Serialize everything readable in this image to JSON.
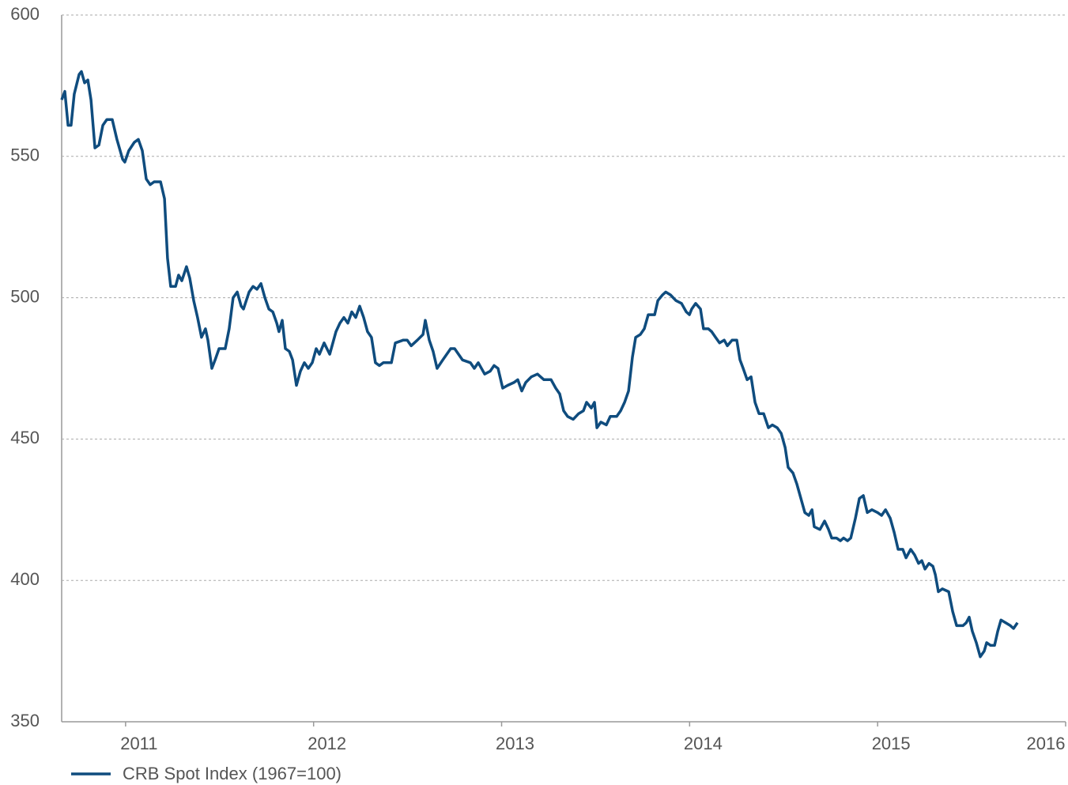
{
  "chart_data": {
    "type": "line",
    "xlim": [
      2010.66,
      2016
    ],
    "ylim": [
      350,
      600
    ],
    "xticks": [
      2011,
      2012,
      2013,
      2014,
      2015,
      2016
    ],
    "yticks": [
      350,
      400,
      450,
      500,
      550,
      600
    ],
    "grid": true,
    "legend": "bottom-left",
    "series": [
      {
        "name": "CRB Spot Index (1967=100)",
        "color": "#0f4c7e",
        "x": [
          2010.66,
          2010.677,
          2010.694,
          2010.71,
          2010.727,
          2010.753,
          2010.765,
          2010.782,
          2010.799,
          2010.816,
          2010.837,
          2010.858,
          2010.879,
          2010.9,
          2010.929,
          2010.954,
          2010.984,
          2010.996,
          2011.017,
          2011.047,
          2011.068,
          2011.089,
          2011.11,
          2011.131,
          2011.152,
          2011.186,
          2011.207,
          2011.223,
          2011.24,
          2011.266,
          2011.282,
          2011.299,
          2011.324,
          2011.341,
          2011.362,
          2011.383,
          2011.404,
          2011.425,
          2011.438,
          2011.459,
          2011.476,
          2011.497,
          2011.53,
          2011.551,
          2011.572,
          2011.594,
          2011.615,
          2011.627,
          2011.657,
          2011.678,
          2011.699,
          2011.72,
          2011.741,
          2011.762,
          2011.783,
          2011.804,
          2011.816,
          2011.833,
          2011.85,
          2011.871,
          2011.888,
          2011.909,
          2011.93,
          2011.951,
          2011.972,
          2011.993,
          2012.014,
          2012.031,
          2012.056,
          2012.086,
          2012.119,
          2012.14,
          2012.161,
          2012.182,
          2012.203,
          2012.224,
          2012.245,
          2012.266,
          2012.287,
          2012.308,
          2012.329,
          2012.35,
          2012.371,
          2012.414,
          2012.435,
          2012.477,
          2012.498,
          2012.519,
          2012.552,
          2012.582,
          2012.594,
          2012.615,
          2012.636,
          2012.657,
          2012.687,
          2012.729,
          2012.75,
          2012.792,
          2012.834,
          2012.855,
          2012.876,
          2012.91,
          2012.939,
          2012.96,
          2012.981,
          2013.006,
          2013.032,
          2013.065,
          2013.086,
          2013.107,
          2013.128,
          2013.158,
          2013.191,
          2013.225,
          2013.242,
          2013.263,
          2013.288,
          2013.309,
          2013.33,
          2013.351,
          2013.381,
          2013.41,
          2013.435,
          2013.452,
          2013.477,
          2013.494,
          2013.507,
          2013.528,
          2013.557,
          2013.578,
          2013.612,
          2013.633,
          2013.654,
          2013.675,
          2013.696,
          2013.713,
          2013.738,
          2013.759,
          2013.78,
          2013.814,
          2013.831,
          2013.856,
          2013.873,
          2013.898,
          2013.927,
          2013.957,
          2013.982,
          2013.999,
          2014.011,
          2014.032,
          2014.058,
          2014.074,
          2014.1,
          2014.117,
          2014.138,
          2014.159,
          2014.184,
          2014.201,
          2014.226,
          2014.251,
          2014.268,
          2014.285,
          2014.306,
          2014.327,
          2014.348,
          2014.369,
          2014.394,
          2014.419,
          2014.44,
          2014.466,
          2014.487,
          2014.508,
          2014.524,
          2014.55,
          2014.571,
          2014.592,
          2014.613,
          2014.634,
          2014.651,
          2014.663,
          2014.693,
          2014.718,
          2014.739,
          2014.756,
          2014.781,
          2014.802,
          2014.819,
          2014.84,
          2014.857,
          2014.882,
          2014.903,
          2014.924,
          2014.945,
          2014.97,
          2015.0,
          2015.021,
          2015.042,
          2015.067,
          2015.088,
          2015.109,
          2015.134,
          2015.151,
          2015.176,
          2015.197,
          2015.218,
          2015.235,
          2015.252,
          2015.273,
          2015.294,
          2015.307,
          2015.323,
          2015.344,
          2015.378,
          2015.399,
          2015.42,
          2015.454,
          2015.471,
          2015.487,
          2015.504,
          2015.525,
          2015.546,
          2015.567,
          2015.58,
          2015.601,
          2015.622,
          2015.639,
          2015.656,
          2015.681,
          2015.706,
          2015.723,
          2015.744
        ],
        "values": [
          570,
          573,
          561,
          561,
          572,
          579,
          580,
          576,
          577,
          570,
          553,
          554,
          561,
          563,
          563,
          556,
          549,
          548,
          552,
          555,
          556,
          552,
          542,
          540,
          541,
          541,
          535,
          514,
          504,
          504,
          508,
          506,
          511,
          507,
          499,
          493,
          486,
          489,
          485,
          475,
          478,
          482,
          482,
          489,
          500,
          502,
          497,
          496,
          502,
          504,
          503,
          505,
          500,
          496,
          495,
          491,
          488,
          492,
          482,
          481,
          478,
          469,
          474,
          477,
          475,
          477,
          482,
          480,
          484,
          480,
          488,
          491,
          493,
          491,
          495,
          493,
          497,
          493,
          488,
          486,
          477,
          476,
          477,
          477,
          484,
          485,
          485,
          483,
          485,
          487,
          492,
          485,
          481,
          475,
          478,
          482,
          482,
          478,
          477,
          475,
          477,
          473,
          474,
          476,
          475,
          468,
          469,
          470,
          471,
          467,
          470,
          472,
          473,
          471,
          471,
          471,
          468,
          466,
          460,
          458,
          457,
          459,
          460,
          463,
          461,
          463,
          454,
          456,
          455,
          458,
          458,
          460,
          463,
          467,
          479,
          486,
          487,
          489,
          494,
          494,
          499,
          501,
          502,
          501,
          499,
          498,
          495,
          494,
          496,
          498,
          496,
          489,
          489,
          488,
          486,
          484,
          485,
          483,
          485,
          485,
          478,
          475,
          471,
          472,
          463,
          459,
          459,
          454,
          455,
          454,
          452,
          447,
          440,
          438,
          434,
          429,
          424,
          423,
          425,
          419,
          418,
          421,
          418,
          415,
          415,
          414,
          415,
          414,
          415,
          422,
          429,
          430,
          424,
          425,
          424,
          423,
          425,
          422,
          417,
          411,
          411,
          408,
          411,
          409,
          406,
          407,
          404,
          406,
          405,
          402,
          396,
          397,
          396,
          389,
          384,
          384,
          385,
          387,
          382,
          378,
          373,
          375,
          378,
          377,
          377,
          382,
          386,
          385,
          384,
          383,
          385
        ]
      }
    ]
  }
}
